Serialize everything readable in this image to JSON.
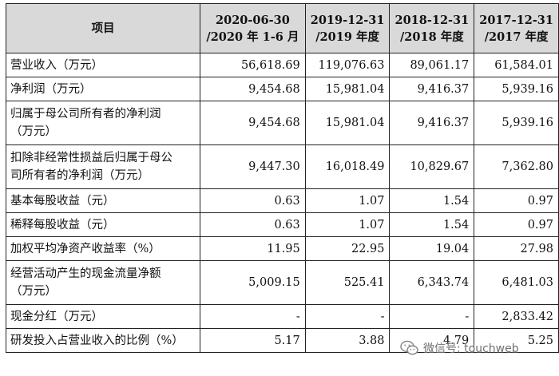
{
  "header": {
    "item": "项目",
    "cols": [
      {
        "line1": "2020-06-30",
        "line2": "/2020 年 1-6 月"
      },
      {
        "line1": "2019-12-31",
        "line2": "/2019 年度"
      },
      {
        "line1": "2018-12-31",
        "line2": "/2018 年度"
      },
      {
        "line1": "2017-12-31",
        "line2": "/2017 年度"
      }
    ]
  },
  "rows": [
    {
      "label": "营业收入（万元）",
      "values": [
        "56,618.69",
        "119,076.63",
        "89,061.17",
        "61,584.01"
      ]
    },
    {
      "label": "净利润（万元）",
      "values": [
        "9,454.68",
        "15,981.04",
        "9,416.37",
        "5,939.16"
      ]
    },
    {
      "label": "归属于母公司所有者的净利润（万元）",
      "line1": "归属于母公司所有者的净利润",
      "line2": "（万元）",
      "values": [
        "9,454.68",
        "15,981.04",
        "9,416.37",
        "5,939.16"
      ]
    },
    {
      "label": "扣除非经常性损益后归属于母公司所有者的净利润（万元）",
      "line1": "扣除非经常性损益后归属于母公",
      "line2": "司所有者的净利润（万元）",
      "values": [
        "9,447.30",
        "16,018.49",
        "10,829.67",
        "7,362.80"
      ]
    },
    {
      "label": "基本每股收益（元）",
      "values": [
        "0.63",
        "1.07",
        "1.54",
        "0.97"
      ]
    },
    {
      "label": "稀释每股收益（元）",
      "values": [
        "0.63",
        "1.07",
        "1.54",
        "0.97"
      ]
    },
    {
      "label": "加权平均净资产收益率（%）",
      "values": [
        "11.95",
        "22.95",
        "19.04",
        "27.98"
      ]
    },
    {
      "label": "经营活动产生的现金流量净额（万元）",
      "line1": "经营活动产生的现金流量净额",
      "line2": "（万元）",
      "values": [
        "5,009.15",
        "525.41",
        "6,343.74",
        "6,481.03"
      ]
    },
    {
      "label": "现金分红（万元）",
      "values": [
        "-",
        "-",
        "-",
        "2,833.42"
      ]
    },
    {
      "label": "研发投入占营业收入的比例（%）",
      "values": [
        "5.17",
        "3.88",
        "4.79",
        "5.25"
      ]
    }
  ],
  "watermark": {
    "text": "微信号: touchweb",
    "icon": "wechat-icon"
  }
}
